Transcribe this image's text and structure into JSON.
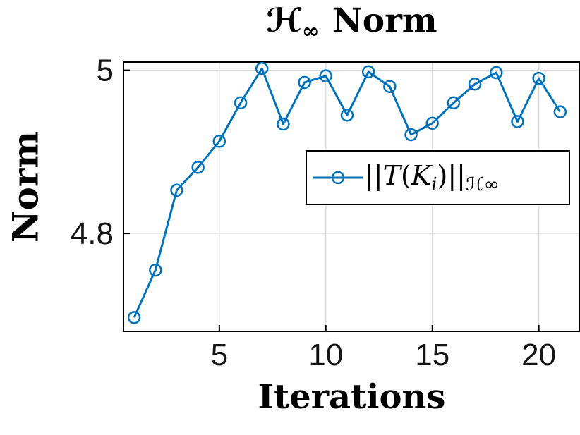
{
  "figure": {
    "title": {
      "script_h": "ℋ",
      "infinity_sub": "∞",
      "word": "Norm"
    },
    "x_axis_label": "Iterations",
    "y_axis_label": "Norm"
  },
  "legend": {
    "bars_left": "||",
    "script_t": "T",
    "paren_open": "(",
    "k": "K",
    "k_sub": "i",
    "paren_close": ")",
    "bars_right": "||",
    "sub_h": "ℋ",
    "sub_infinity": "∞"
  },
  "colors": {
    "line": "#0072BD",
    "grid": "#dedede",
    "axis": "#000000",
    "tick_text": "#151515"
  },
  "chart_data": {
    "type": "line",
    "title": "H-infinity Norm",
    "xlabel": "Iterations",
    "ylabel": "Norm",
    "series": [
      {
        "name": "||T(K_i)||_H-infinity",
        "x": [
          1,
          2,
          3,
          4,
          5,
          6,
          7,
          8,
          9,
          10,
          11,
          12,
          13,
          14,
          15,
          16,
          17,
          18,
          19,
          20,
          21
        ],
        "y": [
          4.697,
          4.755,
          4.853,
          4.881,
          4.913,
          4.96,
          5.002,
          4.934,
          4.985,
          4.993,
          4.945,
          4.998,
          4.98,
          4.921,
          4.935,
          4.96,
          4.983,
          4.997,
          4.937,
          4.99,
          4.949
        ]
      }
    ],
    "xlim": [
      0.5,
      21.9
    ],
    "ylim": [
      4.68,
      5.01
    ],
    "xticks": [
      5,
      10,
      15,
      20
    ],
    "xtick_labels": [
      "5",
      "10",
      "15",
      "20"
    ],
    "yticks": [
      4.8,
      5
    ],
    "ytick_labels": [
      "4.8",
      "5"
    ],
    "grid": true,
    "legend_position": "middle-right",
    "marker": "open-circle"
  }
}
